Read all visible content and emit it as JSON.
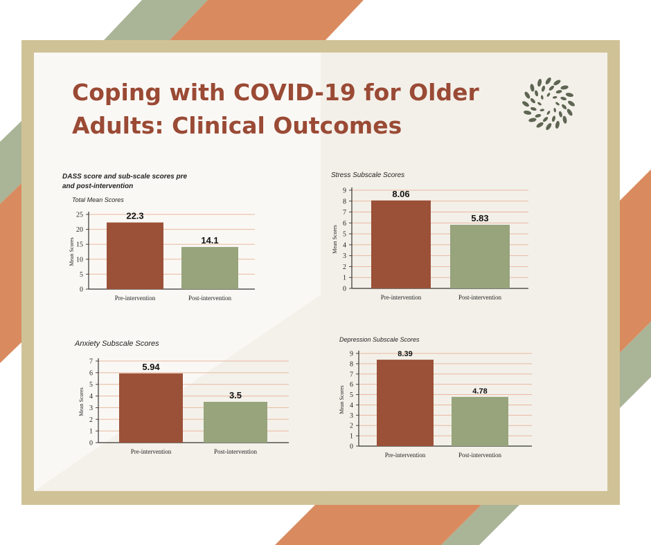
{
  "poster": {
    "title_line1": "Coping with COVID-19 for Older",
    "title_line2": "Adults: Clinical Outcomes",
    "logo_icon": "leaf-wreath-icon",
    "colors": {
      "pre": "#9b5138",
      "post": "#97a47c",
      "title": "#9a4a35",
      "frame": "#d0c297",
      "stripe_orange": "#d98b5f",
      "stripe_green": "#aab497",
      "grid": "#e8b8a0"
    }
  },
  "chart_data": [
    {
      "type": "bar",
      "title": "DASS score and sub-scale scores pre and post-intervention",
      "title_lines": [
        "DASS score and sub-scale scores pre",
        "and post-intervention"
      ],
      "subtitle": "Total Mean Scores",
      "categories": [
        "Pre-intervention",
        "Post-intervention"
      ],
      "values": [
        22.3,
        14.1
      ],
      "value_labels": [
        "22.3",
        "14.1"
      ],
      "ylabel": "Mean Scores",
      "ylim": [
        0,
        25
      ],
      "yticks": [
        0,
        5,
        10,
        15,
        20,
        25
      ],
      "grid": true
    },
    {
      "type": "bar",
      "title": "Stress Subscale Scores",
      "categories": [
        "Pre-intervention",
        "Post-intervention"
      ],
      "values": [
        8.06,
        5.83
      ],
      "value_labels": [
        "8.06",
        "5.83"
      ],
      "ylabel": "Mean Scores",
      "ylim": [
        0,
        9
      ],
      "yticks": [
        0,
        1,
        2,
        3,
        4,
        5,
        6,
        7,
        8,
        9
      ],
      "grid": true
    },
    {
      "type": "bar",
      "title": "Anxiety Subscale Scores",
      "categories": [
        "Pre-intervention",
        "Post-intervention"
      ],
      "values": [
        5.94,
        3.5
      ],
      "value_labels": [
        "5.94",
        "3.5"
      ],
      "ylabel": "Mean Scores",
      "ylim": [
        0,
        7
      ],
      "yticks": [
        0,
        1,
        2,
        3,
        4,
        5,
        6,
        7
      ],
      "grid": true
    },
    {
      "type": "bar",
      "title": "Depression Subscale Scores",
      "categories": [
        "Pre-intervention",
        "Post-intervention"
      ],
      "values": [
        8.39,
        4.78
      ],
      "value_labels": [
        "8.39",
        "4.78"
      ],
      "ylabel": "Mean Scores",
      "ylim": [
        0,
        9
      ],
      "yticks": [
        0,
        1,
        2,
        3,
        4,
        5,
        6,
        7,
        8,
        9
      ],
      "grid": true
    }
  ]
}
